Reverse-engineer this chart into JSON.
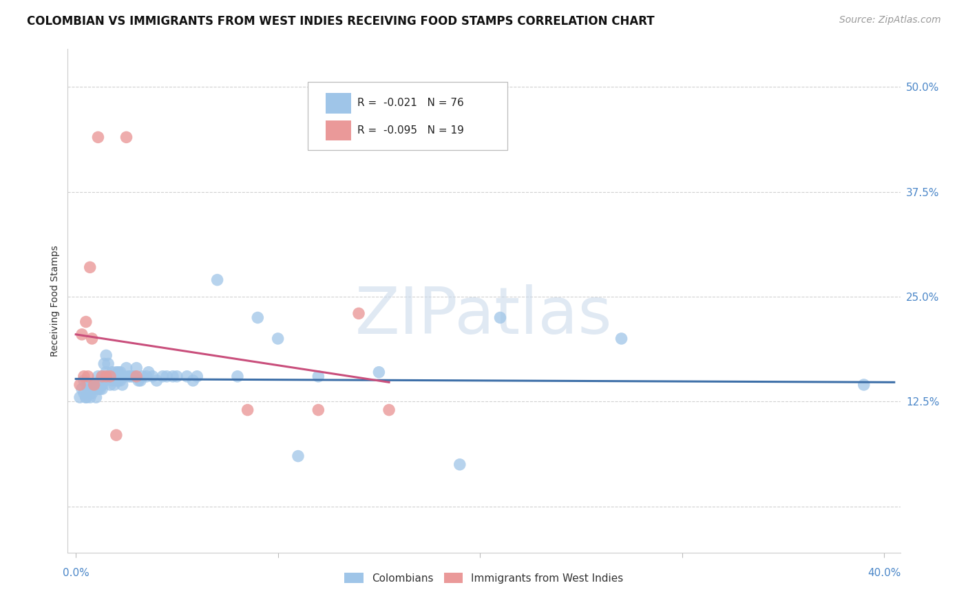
{
  "title": "COLOMBIAN VS IMMIGRANTS FROM WEST INDIES RECEIVING FOOD STAMPS CORRELATION CHART",
  "source": "Source: ZipAtlas.com",
  "ylabel": "Receiving Food Stamps",
  "yticks": [
    0.0,
    0.125,
    0.25,
    0.375,
    0.5
  ],
  "ytick_labels": [
    "",
    "12.5%",
    "25.0%",
    "37.5%",
    "50.0%"
  ],
  "xlim": [
    -0.004,
    0.408
  ],
  "ylim": [
    -0.055,
    0.545
  ],
  "watermark": "ZIPatlas",
  "legend_r_blue": "-0.021",
  "legend_n_blue": "76",
  "legend_r_pink": "-0.095",
  "legend_n_pink": "19",
  "blue_color": "#9fc5e8",
  "pink_color": "#ea9999",
  "line_blue_color": "#3d6fa8",
  "line_pink_color": "#c94f7c",
  "blue_scatter_x": [
    0.002,
    0.003,
    0.004,
    0.004,
    0.005,
    0.005,
    0.005,
    0.006,
    0.006,
    0.007,
    0.007,
    0.008,
    0.008,
    0.009,
    0.009,
    0.01,
    0.01,
    0.011,
    0.011,
    0.012,
    0.012,
    0.013,
    0.013,
    0.013,
    0.014,
    0.014,
    0.015,
    0.015,
    0.016,
    0.016,
    0.017,
    0.017,
    0.018,
    0.018,
    0.019,
    0.019,
    0.02,
    0.02,
    0.021,
    0.021,
    0.022,
    0.022,
    0.023,
    0.023,
    0.024,
    0.025,
    0.026,
    0.027,
    0.028,
    0.029,
    0.03,
    0.031,
    0.032,
    0.033,
    0.035,
    0.036,
    0.038,
    0.04,
    0.043,
    0.045,
    0.048,
    0.05,
    0.055,
    0.058,
    0.06,
    0.07,
    0.08,
    0.09,
    0.1,
    0.11,
    0.12,
    0.15,
    0.19,
    0.21,
    0.27,
    0.39
  ],
  "blue_scatter_y": [
    0.13,
    0.14,
    0.135,
    0.15,
    0.13,
    0.145,
    0.13,
    0.145,
    0.14,
    0.145,
    0.13,
    0.135,
    0.145,
    0.14,
    0.14,
    0.145,
    0.13,
    0.14,
    0.155,
    0.15,
    0.14,
    0.155,
    0.145,
    0.14,
    0.15,
    0.17,
    0.18,
    0.16,
    0.17,
    0.155,
    0.155,
    0.145,
    0.16,
    0.15,
    0.155,
    0.145,
    0.16,
    0.15,
    0.16,
    0.15,
    0.16,
    0.15,
    0.155,
    0.145,
    0.155,
    0.165,
    0.155,
    0.155,
    0.155,
    0.155,
    0.165,
    0.15,
    0.15,
    0.155,
    0.155,
    0.16,
    0.155,
    0.15,
    0.155,
    0.155,
    0.155,
    0.155,
    0.155,
    0.15,
    0.155,
    0.27,
    0.155,
    0.225,
    0.2,
    0.06,
    0.155,
    0.16,
    0.05,
    0.225,
    0.2,
    0.145
  ],
  "pink_scatter_x": [
    0.002,
    0.003,
    0.004,
    0.005,
    0.006,
    0.007,
    0.008,
    0.009,
    0.011,
    0.013,
    0.015,
    0.017,
    0.02,
    0.025,
    0.03,
    0.085,
    0.12,
    0.14,
    0.155
  ],
  "pink_scatter_y": [
    0.145,
    0.205,
    0.155,
    0.22,
    0.155,
    0.285,
    0.2,
    0.145,
    0.44,
    0.155,
    0.155,
    0.155,
    0.085,
    0.44,
    0.155,
    0.115,
    0.115,
    0.23,
    0.115
  ],
  "blue_line_x0": 0.0,
  "blue_line_x1": 0.405,
  "blue_line_y0": 0.152,
  "blue_line_y1": 0.148,
  "pink_line_x0": 0.0,
  "pink_line_x1": 0.155,
  "pink_line_y0": 0.205,
  "pink_line_y1": 0.148,
  "grid_color": "#d0d0d0",
  "background_color": "#ffffff",
  "title_fontsize": 12,
  "axis_label_fontsize": 10,
  "tick_fontsize": 11,
  "source_fontsize": 10
}
